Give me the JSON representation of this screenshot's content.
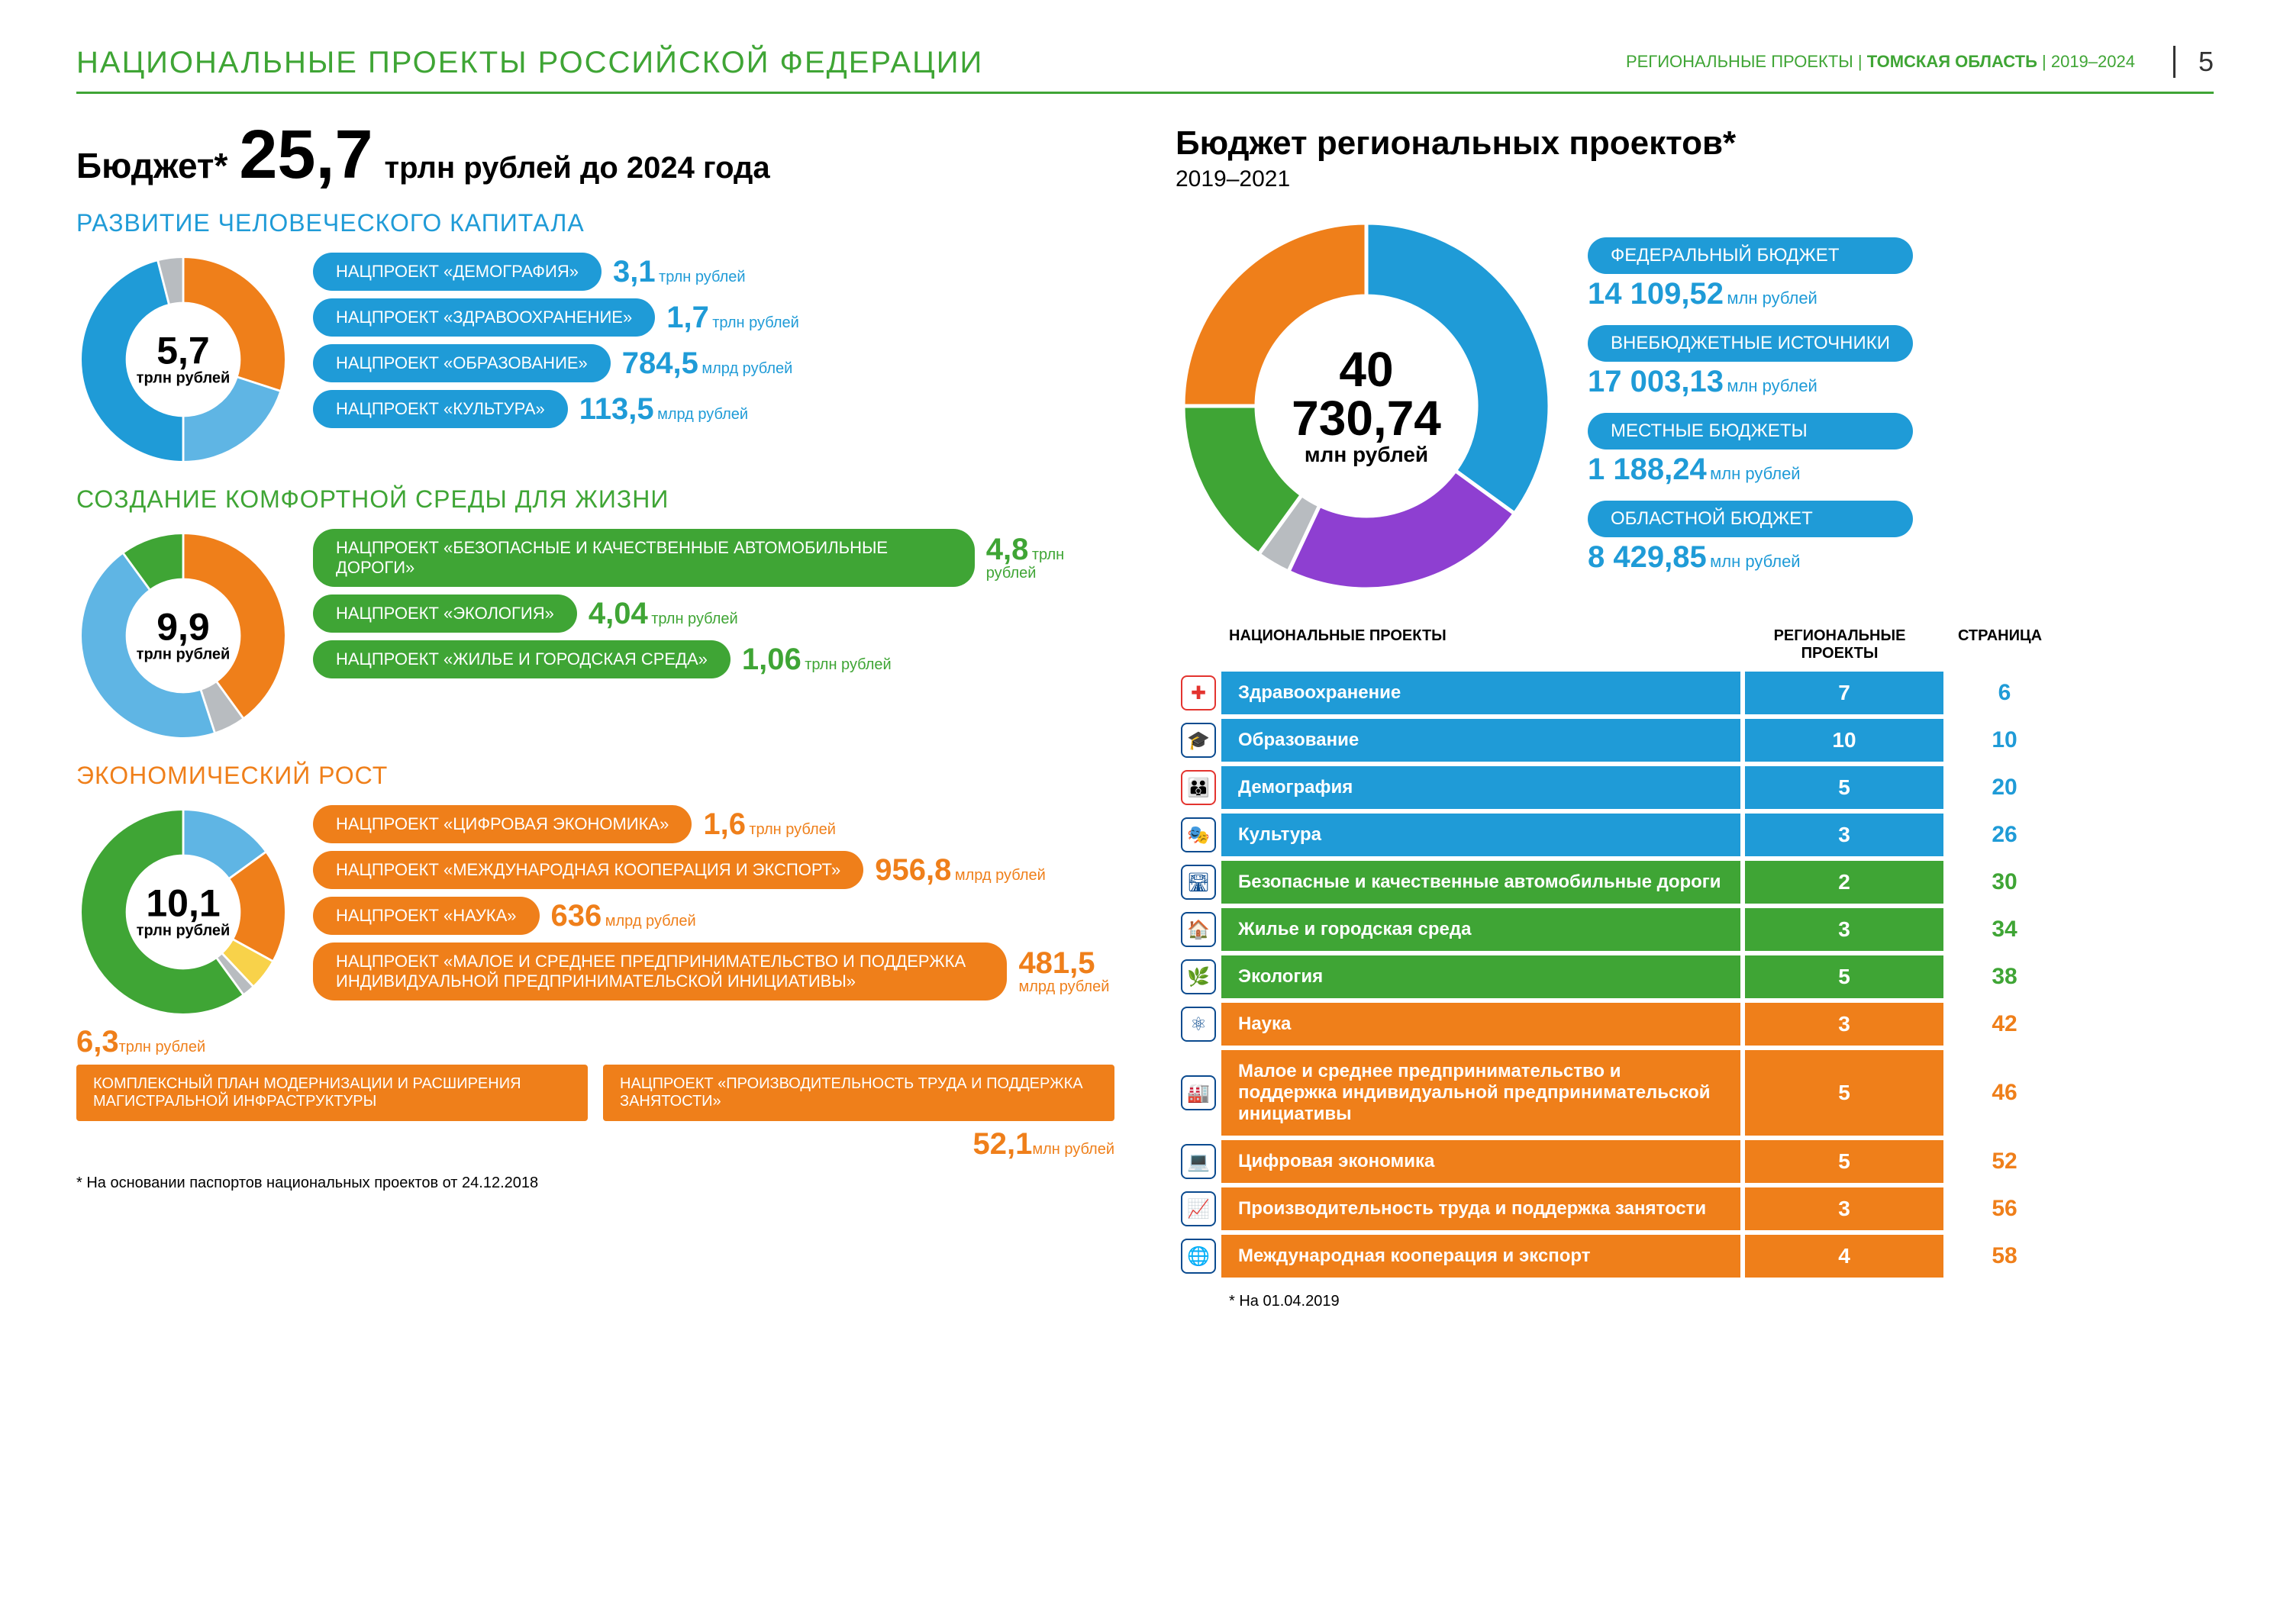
{
  "header": {
    "title": "НАЦИОНАЛЬНЫЕ ПРОЕКТЫ РОССИЙСКОЙ ФЕДЕРАЦИИ",
    "right_prefix": "РЕГИОНАЛЬНЫЕ ПРОЕКТЫ",
    "right_bold": "ТОМСКАЯ ОБЛАСТЬ",
    "right_years": "2019–2024",
    "page_number": "5"
  },
  "colors": {
    "blue": "#1f9bd7",
    "blue2": "#5fb5e4",
    "orange": "#ef7f1a",
    "green": "#3fa535",
    "green2": "#6bbf4a",
    "purple": "#8e3fd1",
    "grey": "#b8bcc0",
    "yellow": "#f8d24a",
    "darkblue": "#0b4b8f"
  },
  "left": {
    "budget_label": "Бюджет*",
    "budget_value": "25,7",
    "budget_unit": "трлн рублей до 2024 года",
    "sections": [
      {
        "title": "РАЗВИТИЕ ЧЕЛОВЕЧЕСКОГО КАПИТАЛА",
        "title_color": "#1f9bd7",
        "donut": {
          "value": "5,7",
          "unit": "трлн рублей",
          "slices": [
            {
              "color": "#ef7f1a",
              "pct": 30
            },
            {
              "color": "#5fb5e4",
              "pct": 20
            },
            {
              "color": "#1f9bd7",
              "pct": 46
            },
            {
              "color": "#b8bcc0",
              "pct": 4
            }
          ]
        },
        "items": [
          {
            "pill": "НАЦПРОЕКТ «ДЕМОГРАФИЯ»",
            "pill_color": "#1f9bd7",
            "value": "3,1",
            "unit": "трлн рублей",
            "val_color": "#1f9bd7"
          },
          {
            "pill": "НАЦПРОЕКТ «ЗДРАВООХРАНЕНИЕ»",
            "pill_color": "#1f9bd7",
            "value": "1,7",
            "unit": "трлн рублей",
            "val_color": "#1f9bd7"
          },
          {
            "pill": "НАЦПРОЕКТ «ОБРАЗОВАНИЕ»",
            "pill_color": "#1f9bd7",
            "value": "784,5",
            "unit": "млрд рублей",
            "val_color": "#1f9bd7"
          },
          {
            "pill": "НАЦПРОЕКТ «КУЛЬТУРА»",
            "pill_color": "#1f9bd7",
            "value": "113,5",
            "unit": "млрд рублей",
            "val_color": "#1f9bd7"
          }
        ]
      },
      {
        "title": "СОЗДАНИЕ КОМФОРТНОЙ СРЕДЫ ДЛЯ ЖИЗНИ",
        "title_color": "#3fa535",
        "donut": {
          "value": "9,9",
          "unit": "трлн рублей",
          "slices": [
            {
              "color": "#ef7f1a",
              "pct": 40
            },
            {
              "color": "#b8bcc0",
              "pct": 5
            },
            {
              "color": "#5fb5e4",
              "pct": 45
            },
            {
              "color": "#3fa535",
              "pct": 10
            }
          ]
        },
        "items": [
          {
            "pill": "НАЦПРОЕКТ «БЕЗОПАСНЫЕ И КАЧЕСТВЕННЫЕ АВТОМОБИЛЬНЫЕ ДОРОГИ»",
            "pill_color": "#3fa535",
            "value": "4,8",
            "unit": "трлн рублей",
            "val_color": "#3fa535"
          },
          {
            "pill": "НАЦПРОЕКТ «ЭКОЛОГИЯ»",
            "pill_color": "#3fa535",
            "value": "4,04",
            "unit": "трлн рублей",
            "val_color": "#3fa535"
          },
          {
            "pill": "НАЦПРОЕКТ «ЖИЛЬЕ И ГОРОДСКАЯ СРЕДА»",
            "pill_color": "#3fa535",
            "value": "1,06",
            "unit": "трлн рублей",
            "val_color": "#3fa535"
          }
        ]
      },
      {
        "title": "ЭКОНОМИЧЕСКИЙ РОСТ",
        "title_color": "#ef7f1a",
        "donut": {
          "value": "10,1",
          "unit": "трлн рублей",
          "slices": [
            {
              "color": "#5fb5e4",
              "pct": 15
            },
            {
              "color": "#ef7f1a",
              "pct": 18
            },
            {
              "color": "#f8d24a",
              "pct": 5
            },
            {
              "color": "#b8bcc0",
              "pct": 2
            },
            {
              "color": "#3fa535",
              "pct": 60
            }
          ]
        },
        "items": [
          {
            "pill": "НАЦПРОЕКТ «ЦИФРОВАЯ ЭКОНОМИКА»",
            "pill_color": "#ef7f1a",
            "value": "1,6",
            "unit": "трлн рублей",
            "val_color": "#ef7f1a"
          },
          {
            "pill": "НАЦПРОЕКТ «МЕЖДУНАРОДНАЯ КООПЕРАЦИЯ И ЭКСПОРТ»",
            "pill_color": "#ef7f1a",
            "value": "956,8",
            "unit": "млрд рублей",
            "val_color": "#ef7f1a"
          },
          {
            "pill": "НАЦПРОЕКТ «НАУКА»",
            "pill_color": "#ef7f1a",
            "value": "636",
            "unit": "млрд рублей",
            "val_color": "#ef7f1a"
          },
          {
            "pill": "НАЦПРОЕКТ «МАЛОЕ И СРЕДНЕЕ ПРЕДПРИНИМАТЕЛЬСТВО И ПОДДЕРЖКА ИНДИВИДУАЛЬНОЙ ПРЕДПРИНИМАТЕЛЬСКОЙ ИНИЦИАТИВЫ»",
            "pill_color": "#ef7f1a",
            "value": "481,5",
            "unit": "млрд рублей",
            "val_color": "#ef7f1a"
          }
        ],
        "extra_left": {
          "value": "6,3",
          "unit": "трлн рублей",
          "box": "КОМПЛЕКСНЫЙ ПЛАН МОДЕРНИЗАЦИИ И РАСШИРЕНИЯ МАГИСТРАЛЬНОЙ ИНФРАСТРУКТУРЫ"
        },
        "extra_right": {
          "box": "НАЦПРОЕКТ «ПРОИЗВОДИТЕЛЬНОСТЬ ТРУДА И ПОДДЕРЖКА ЗАНЯТОСТИ»",
          "value": "52,1",
          "unit": "млн рублей"
        }
      }
    ],
    "footnote": "* На основании паспортов национальных проектов от 24.12.2018"
  },
  "right": {
    "title": "Бюджет региональных проектов*",
    "sub": "2019–2021",
    "donut": {
      "value": "40 730,74",
      "unit": "млн рублей",
      "slices": [
        {
          "color": "#1f9bd7",
          "pct": 35
        },
        {
          "color": "#8e3fd1",
          "pct": 22
        },
        {
          "color": "#b8bcc0",
          "pct": 3
        },
        {
          "color": "#3fa535",
          "pct": 15
        },
        {
          "color": "#ef7f1a",
          "pct": 25
        }
      ]
    },
    "legend": [
      {
        "label": "ФЕДЕРАЛЬНЫЙ БЮДЖЕТ",
        "pill_color": "#1f9bd7",
        "value": "14 109,52",
        "unit": "млн рублей"
      },
      {
        "label": "ВНЕБЮДЖЕТНЫЕ ИСТОЧНИКИ",
        "pill_color": "#1f9bd7",
        "value": "17 003,13",
        "unit": "млн рублей"
      },
      {
        "label": "МЕСТНЫЕ БЮДЖЕТЫ",
        "pill_color": "#1f9bd7",
        "value": "1 188,24",
        "unit": "млн рублей"
      },
      {
        "label": "ОБЛАСТНОЙ БЮДЖЕТ",
        "pill_color": "#1f9bd7",
        "value": "8 429,85",
        "unit": "млн рублей"
      }
    ],
    "table_headers": {
      "name": "НАЦИОНАЛЬНЫЕ ПРОЕКТЫ",
      "reg": "РЕГИОНАЛЬНЫЕ ПРОЕКТЫ",
      "page": "СТРАНИЦА"
    },
    "projects": [
      {
        "name": "Здравоохранение",
        "reg": "7",
        "page": "6",
        "color": "#1f9bd7",
        "icon": "✚",
        "icon_color": "#e3342f"
      },
      {
        "name": "Образование",
        "reg": "10",
        "page": "10",
        "color": "#1f9bd7",
        "icon": "🎓",
        "icon_color": "#0b4b8f"
      },
      {
        "name": "Демография",
        "reg": "5",
        "page": "20",
        "color": "#1f9bd7",
        "icon": "👪",
        "icon_color": "#e3342f"
      },
      {
        "name": "Культура",
        "reg": "3",
        "page": "26",
        "color": "#1f9bd7",
        "icon": "🎭",
        "icon_color": "#0b4b8f"
      },
      {
        "name": "Безопасные и качественные автомобильные дороги",
        "reg": "2",
        "page": "30",
        "color": "#3fa535",
        "icon": "🛣",
        "icon_color": "#0b4b8f"
      },
      {
        "name": "Жилье и городская среда",
        "reg": "3",
        "page": "34",
        "color": "#3fa535",
        "icon": "🏠",
        "icon_color": "#0b4b8f"
      },
      {
        "name": "Экология",
        "reg": "5",
        "page": "38",
        "color": "#3fa535",
        "icon": "🌿",
        "icon_color": "#0b4b8f"
      },
      {
        "name": "Наука",
        "reg": "3",
        "page": "42",
        "color": "#ef7f1a",
        "icon": "⚛",
        "icon_color": "#0b4b8f"
      },
      {
        "name": "Малое и среднее предпринимательство и поддержка индивидуальной предпринимательской инициативы",
        "reg": "5",
        "page": "46",
        "color": "#ef7f1a",
        "icon": "🏭",
        "icon_color": "#0b4b8f"
      },
      {
        "name": "Цифровая экономика",
        "reg": "5",
        "page": "52",
        "color": "#ef7f1a",
        "icon": "💻",
        "icon_color": "#0b4b8f"
      },
      {
        "name": "Производительность труда и поддержка занятости",
        "reg": "3",
        "page": "56",
        "color": "#ef7f1a",
        "icon": "📈",
        "icon_color": "#0b4b8f"
      },
      {
        "name": "Международная кооперация и экспорт",
        "reg": "4",
        "page": "58",
        "color": "#ef7f1a",
        "icon": "🌐",
        "icon_color": "#0b4b8f"
      }
    ],
    "footnote": "* На 01.04.2019"
  }
}
